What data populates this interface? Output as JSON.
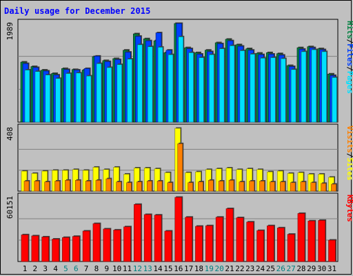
{
  "title": "Daily usage for December 2015",
  "colors": {
    "background": "#c0c0c0",
    "hits": "#008040",
    "files": "#0040ff",
    "pages": "#00e0ff",
    "visits": "#ff8000",
    "sites": "#ffff00",
    "kbytes": "#ff0000",
    "title": "#0000ff",
    "weekend_label": "#008080"
  },
  "panels": {
    "top": {
      "max_label": "1989",
      "legend": [
        {
          "text": "Hits",
          "color": "#008040"
        },
        {
          "text": "/",
          "color": "#000000"
        },
        {
          "text": "Files",
          "color": "#0040ff"
        },
        {
          "text": "/",
          "color": "#000000"
        },
        {
          "text": "Pages",
          "color": "#00e0ff"
        }
      ]
    },
    "middle": {
      "max_label": "408",
      "legend": [
        {
          "text": "Visits",
          "color": "#ff8000"
        },
        {
          "text": "/",
          "color": "#000000"
        },
        {
          "text": "Sites",
          "color": "#ffff00"
        }
      ]
    },
    "bottom": {
      "max_label": "60151",
      "legend": [
        {
          "text": "KBytes",
          "color": "#ff0000"
        }
      ]
    }
  },
  "chart_data": {
    "type": "bar",
    "title": "Daily usage for December 2015",
    "categories": [
      "1",
      "2",
      "3",
      "4",
      "5",
      "6",
      "7",
      "8",
      "9",
      "10",
      "11",
      "12",
      "13",
      "14",
      "15",
      "16",
      "17",
      "18",
      "19",
      "20",
      "21",
      "22",
      "23",
      "24",
      "25",
      "26",
      "27",
      "28",
      "29",
      "30",
      "31"
    ],
    "weekend_days": [
      "5",
      "6",
      "12",
      "13",
      "19",
      "20",
      "26",
      "27"
    ],
    "panels": [
      {
        "name": "top",
        "ylim": [
          0,
          1989
        ],
        "series": [
          {
            "name": "Hits",
            "values": [
              1210,
              1120,
              1050,
              980,
              1080,
              1060,
              1050,
              1320,
              1240,
              1280,
              1450,
              1780,
              1680,
              1640,
              1400,
              1989,
              1500,
              1400,
              1450,
              1600,
              1670,
              1560,
              1480,
              1390,
              1400,
              1380,
              1140,
              1500,
              1520,
              1480,
              970
            ]
          },
          {
            "name": "Files",
            "values": [
              1180,
              1100,
              1030,
              950,
              1060,
              1050,
              1080,
              1330,
              1220,
              1260,
              1410,
              1730,
              1640,
              1800,
              1450,
              1989,
              1480,
              1370,
              1420,
              1580,
              1640,
              1530,
              1450,
              1360,
              1370,
              1350,
              1120,
              1470,
              1500,
              1460,
              940
            ]
          },
          {
            "name": "Pages",
            "values": [
              1050,
              1020,
              950,
              880,
              980,
              990,
              930,
              1180,
              1100,
              1160,
              1270,
              1560,
              1520,
              1510,
              1360,
              1720,
              1400,
              1300,
              1360,
              1480,
              1540,
              1440,
              1370,
              1290,
              1300,
              1280,
              1060,
              1420,
              1460,
              1420,
              900
            ]
          }
        ]
      },
      {
        "name": "middle",
        "ylim": [
          0,
          408
        ],
        "series": [
          {
            "name": "Sites",
            "values": [
              130,
              115,
              130,
              135,
              135,
              140,
              135,
              155,
              140,
              155,
              110,
              150,
              150,
              145,
              120,
              408,
              120,
              125,
              140,
              145,
              150,
              140,
              145,
              140,
              125,
              130,
              115,
              120,
              110,
              110,
              90
            ]
          },
          {
            "name": "Visits",
            "values": [
              65,
              65,
              60,
              65,
              70,
              70,
              65,
              70,
              80,
              60,
              55,
              60,
              65,
              65,
              55,
              308,
              55,
              60,
              70,
              65,
              70,
              60,
              65,
              65,
              60,
              60,
              55,
              60,
              55,
              50,
              45
            ]
          }
        ]
      },
      {
        "name": "bottom",
        "ylim": [
          0,
          60151
        ],
        "series": [
          {
            "name": "KBytes",
            "values": [
              25000,
              24000,
              23000,
              21000,
              22500,
              23500,
              28500,
              35500,
              30500,
              29500,
              32500,
              53500,
              44000,
              43500,
              28500,
              60151,
              41500,
              33000,
              33500,
              41500,
              49500,
              41000,
              37000,
              29000,
              33500,
              31500,
              25500,
              45000,
              38000,
              38500,
              20000
            ]
          }
        ]
      }
    ]
  }
}
